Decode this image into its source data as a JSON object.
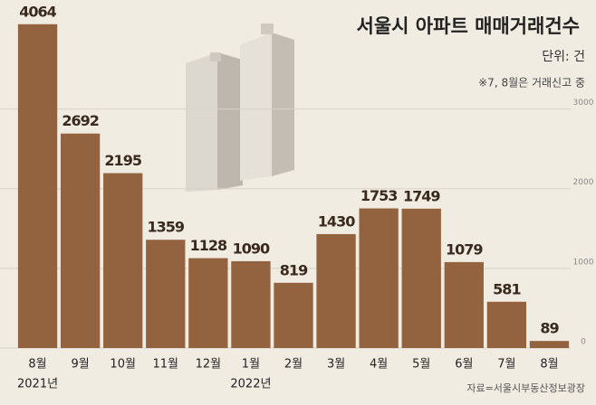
{
  "chart_data": {
    "type": "bar",
    "title": "서울시 아파트 매매거래건수",
    "unit_label": "단위: 건",
    "note": "※7, 8월은 거래신고 중",
    "source": "자료=서울시부동산정보광장",
    "categories": [
      "8월",
      "9월",
      "10월",
      "11월",
      "12월",
      "1월",
      "2월",
      "3월",
      "4월",
      "5월",
      "6월",
      "7월",
      "8월"
    ],
    "year_labels": [
      "2021년",
      null,
      null,
      null,
      null,
      "2022년",
      null,
      null,
      null,
      null,
      null,
      null,
      null
    ],
    "values": [
      4064,
      2692,
      2195,
      1359,
      1128,
      1090,
      819,
      1430,
      1753,
      1749,
      1079,
      581,
      89
    ],
    "color": "#93633f",
    "ylim": [
      0,
      4300
    ],
    "yticks": [
      0,
      1000,
      2000,
      3000
    ],
    "grid": true
  }
}
